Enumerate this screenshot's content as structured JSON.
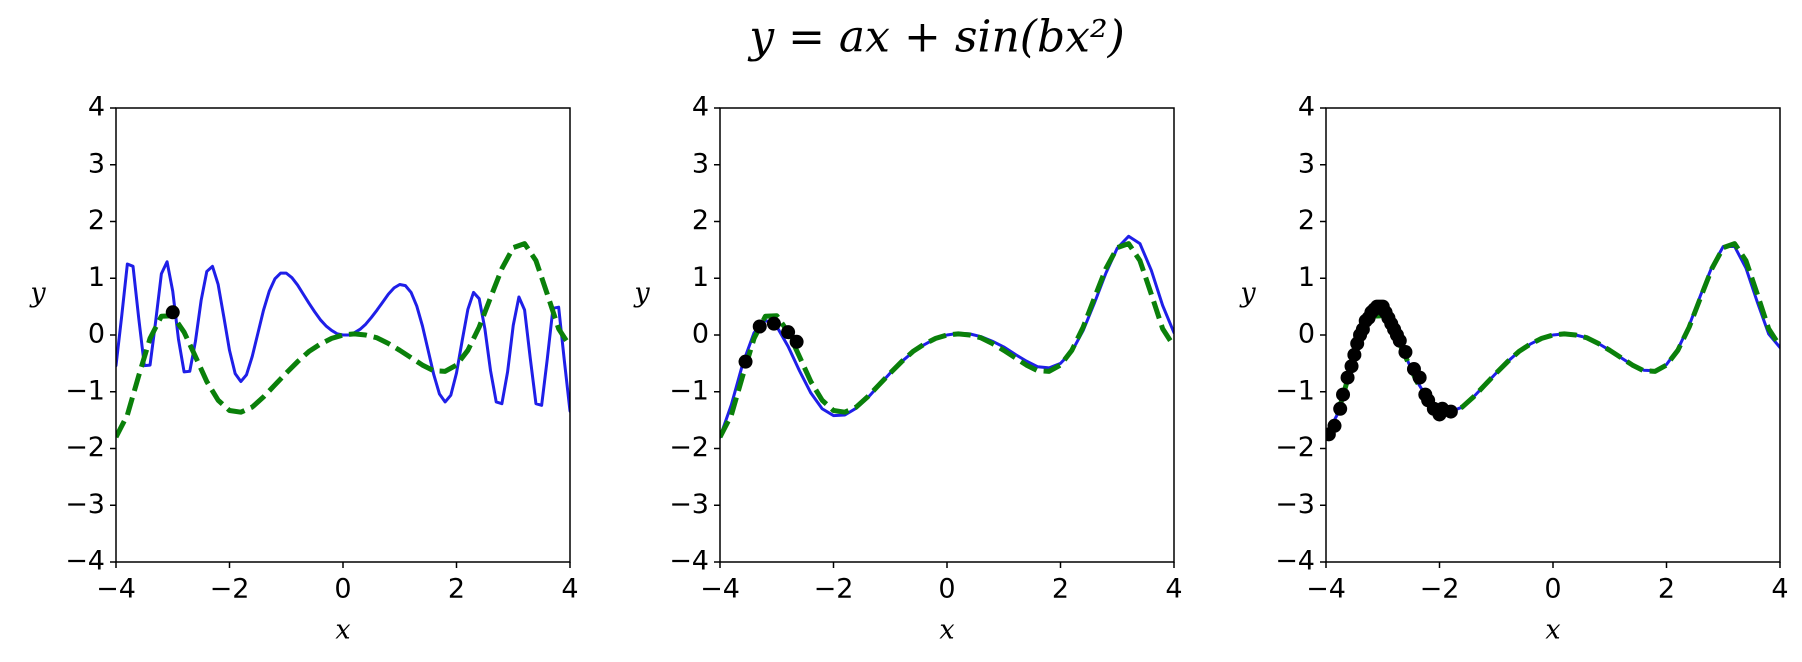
{
  "title": "y = ax + sin(bx²)",
  "chart_data": [
    {
      "type": "line",
      "xlabel": "x",
      "ylabel": "y",
      "xlim": [
        -4,
        4
      ],
      "ylim": [
        -4,
        4
      ],
      "xticks": [
        {
          "value": -4,
          "label": "−4"
        },
        {
          "value": -2,
          "label": "−2"
        },
        0,
        2,
        4
      ],
      "yticks": [
        {
          "value": -4,
          "label": "−4"
        },
        {
          "value": -3,
          "label": "−3"
        },
        {
          "value": -2,
          "label": "−2"
        },
        {
          "value": -1,
          "label": "−1"
        },
        0,
        1,
        2,
        3,
        4
      ],
      "series": [
        {
          "type": "line",
          "color": "#1f1fe8",
          "dash": false,
          "x": [
            -4,
            -3.9,
            -3.8,
            -3.7,
            -3.6,
            -3.5,
            -3.4,
            -3.3,
            -3.2,
            -3.1,
            -3,
            -2.9,
            -2.8,
            -2.7,
            -2.6,
            -2.5,
            -2.4,
            -2.3,
            -2.2,
            -2.1,
            -2,
            -1.9,
            -1.8,
            -1.7,
            -1.6,
            -1.5,
            -1.4,
            -1.3,
            -1.2,
            -1.1,
            -1,
            -0.9,
            -0.8,
            -0.7,
            -0.6,
            -0.5,
            -0.4,
            -0.3,
            -0.2,
            -0.1,
            0,
            0.1,
            0.2,
            0.3,
            0.4,
            0.5,
            0.6,
            0.7,
            0.8,
            0.9,
            1,
            1.1,
            1.2,
            1.3,
            1.4,
            1.5,
            1.6,
            1.7,
            1.8,
            1.9,
            2,
            2.1,
            2.2,
            2.3,
            2.4,
            2.5,
            2.6,
            2.7,
            2.8,
            2.9,
            3,
            3.1,
            3.2,
            3.3,
            3.4,
            3.5,
            3.6,
            3.7,
            3.8,
            3.9,
            4
          ],
          "values": [
            -0.54,
            0.33,
            1.25,
            1.21,
            0.3,
            -0.54,
            -0.53,
            0.25,
            1.08,
            1.29,
            0.77,
            -0.07,
            -0.65,
            -0.64,
            -0.11,
            0.61,
            1.12,
            1.21,
            0.89,
            0.32,
            -0.27,
            -0.68,
            -0.82,
            -0.7,
            -0.38,
            0.03,
            0.44,
            0.77,
            0.99,
            1.09,
            1.09,
            1.01,
            0.88,
            0.72,
            0.56,
            0.41,
            0.27,
            0.16,
            0.08,
            0.02,
            0,
            0,
            0.04,
            0.1,
            0.19,
            0.31,
            0.44,
            0.58,
            0.72,
            0.83,
            0.89,
            0.87,
            0.75,
            0.51,
            0.16,
            -0.27,
            -0.7,
            -1.04,
            -1.18,
            -1.06,
            -0.67,
            -0.1,
            0.45,
            0.75,
            0.64,
            0.11,
            -0.63,
            -1.18,
            -1.21,
            -0.65,
            0.17,
            0.67,
            0.44,
            -0.41,
            -1.21,
            -1.24,
            -0.42,
            0.47,
            0.49,
            -0.45,
            -1.34
          ]
        },
        {
          "type": "line",
          "color": "#0a800a",
          "dash": true,
          "x": [
            -4,
            -3.8,
            -3.6,
            -3.4,
            -3.2,
            -3,
            -2.8,
            -2.6,
            -2.4,
            -2.2,
            -2,
            -1.8,
            -1.6,
            -1.4,
            -1.2,
            -1,
            -0.8,
            -0.6,
            -0.4,
            -0.2,
            0,
            0.2,
            0.4,
            0.6,
            0.8,
            1,
            1.2,
            1.4,
            1.6,
            1.8,
            2,
            2.2,
            2.4,
            2.6,
            2.8,
            3,
            3.2,
            3.4,
            3.6,
            3.8,
            4
          ],
          "values": [
            -1.8,
            -1.41,
            -0.72,
            -0.06,
            0.33,
            0.34,
            0.05,
            -0.38,
            -0.82,
            -1.15,
            -1.33,
            -1.36,
            -1.27,
            -1.09,
            -0.88,
            -0.67,
            -0.47,
            -0.29,
            -0.16,
            -0.06,
            0,
            0.02,
            0,
            -0.05,
            -0.15,
            -0.27,
            -0.4,
            -0.53,
            -0.63,
            -0.64,
            -0.53,
            -0.27,
            0.14,
            0.66,
            1.17,
            1.54,
            1.61,
            1.31,
            0.72,
            0.11,
            -0.2
          ]
        },
        {
          "type": "scatter",
          "color": "#000000",
          "x": [
            -3
          ],
          "values": [
            0.4
          ]
        }
      ]
    },
    {
      "type": "line",
      "xlabel": "x",
      "ylabel": "y",
      "xlim": [
        -4,
        4
      ],
      "ylim": [
        -4,
        4
      ],
      "xticks": [
        {
          "value": -4,
          "label": "−4"
        },
        {
          "value": -2,
          "label": "−2"
        },
        0,
        2,
        4
      ],
      "yticks": [
        {
          "value": -4,
          "label": "−4"
        },
        {
          "value": -3,
          "label": "−3"
        },
        {
          "value": -2,
          "label": "−2"
        },
        {
          "value": -1,
          "label": "−1"
        },
        0,
        1,
        2,
        3,
        4
      ],
      "series": [
        {
          "type": "line",
          "color": "#1f1fe8",
          "dash": false,
          "x": [
            -4,
            -3.8,
            -3.6,
            -3.4,
            -3.2,
            -3,
            -2.8,
            -2.6,
            -2.4,
            -2.2,
            -2,
            -1.8,
            -1.6,
            -1.4,
            -1.2,
            -1,
            -0.8,
            -0.6,
            -0.4,
            -0.2,
            0,
            0.2,
            0.4,
            0.6,
            0.8,
            1,
            1.2,
            1.4,
            1.6,
            1.8,
            2,
            2.2,
            2.4,
            2.6,
            2.8,
            3,
            3.2,
            3.4,
            3.6,
            3.8,
            4
          ],
          "values": [
            -1.8,
            -1.23,
            -0.51,
            0.04,
            0.26,
            0.15,
            -0.2,
            -0.63,
            -1.02,
            -1.3,
            -1.42,
            -1.41,
            -1.29,
            -1.11,
            -0.89,
            -0.67,
            -0.47,
            -0.3,
            -0.17,
            -0.06,
            0,
            0.03,
            0.02,
            -0.03,
            -0.11,
            -0.21,
            -0.34,
            -0.46,
            -0.56,
            -0.58,
            -0.5,
            -0.29,
            0.08,
            0.57,
            1.09,
            1.53,
            1.74,
            1.61,
            1.14,
            0.52,
            0.04
          ]
        },
        {
          "type": "line",
          "color": "#0a800a",
          "dash": true,
          "x": [
            -4,
            -3.8,
            -3.6,
            -3.4,
            -3.2,
            -3,
            -2.8,
            -2.6,
            -2.4,
            -2.2,
            -2,
            -1.8,
            -1.6,
            -1.4,
            -1.2,
            -1,
            -0.8,
            -0.6,
            -0.4,
            -0.2,
            0,
            0.2,
            0.4,
            0.6,
            0.8,
            1,
            1.2,
            1.4,
            1.6,
            1.8,
            2,
            2.2,
            2.4,
            2.6,
            2.8,
            3,
            3.2,
            3.4,
            3.6,
            3.8,
            4
          ],
          "values": [
            -1.8,
            -1.41,
            -0.72,
            -0.06,
            0.33,
            0.34,
            0.05,
            -0.38,
            -0.82,
            -1.15,
            -1.33,
            -1.36,
            -1.27,
            -1.09,
            -0.88,
            -0.67,
            -0.47,
            -0.29,
            -0.16,
            -0.06,
            0,
            0.02,
            0,
            -0.05,
            -0.15,
            -0.27,
            -0.4,
            -0.53,
            -0.63,
            -0.64,
            -0.53,
            -0.27,
            0.14,
            0.66,
            1.17,
            1.54,
            1.61,
            1.31,
            0.72,
            0.11,
            -0.2
          ]
        },
        {
          "type": "scatter",
          "color": "#000000",
          "x": [
            -3.55,
            -3.3,
            -3.05,
            -2.8,
            -2.65
          ],
          "values": [
            -0.47,
            0.15,
            0.2,
            0.05,
            -0.12
          ]
        }
      ]
    },
    {
      "type": "line",
      "xlabel": "x",
      "ylabel": "y",
      "xlim": [
        -4,
        4
      ],
      "ylim": [
        -4,
        4
      ],
      "xticks": [
        {
          "value": -4,
          "label": "−4"
        },
        {
          "value": -2,
          "label": "−2"
        },
        0,
        2,
        4
      ],
      "yticks": [
        {
          "value": -4,
          "label": "−4"
        },
        {
          "value": -3,
          "label": "−3"
        },
        {
          "value": -2,
          "label": "−2"
        },
        {
          "value": -1,
          "label": "−1"
        },
        0,
        1,
        2,
        3,
        4
      ],
      "series": [
        {
          "type": "line",
          "color": "#1f1fe8",
          "dash": false,
          "x": [
            -4,
            -3.8,
            -3.6,
            -3.4,
            -3.2,
            -3,
            -2.8,
            -2.6,
            -2.4,
            -2.2,
            -2,
            -1.8,
            -1.6,
            -1.4,
            -1.2,
            -1,
            -0.8,
            -0.6,
            -0.4,
            -0.2,
            0,
            0.2,
            0.4,
            0.6,
            0.8,
            1,
            1.2,
            1.4,
            1.6,
            1.8,
            2,
            2.2,
            2.4,
            2.6,
            2.8,
            3,
            3.2,
            3.4,
            3.6,
            3.8,
            4
          ],
          "values": [
            -1.78,
            -1.4,
            -0.7,
            -0.04,
            0.35,
            0.35,
            0.06,
            -0.37,
            -0.81,
            -1.14,
            -1.32,
            -1.35,
            -1.27,
            -1.09,
            -0.88,
            -0.67,
            -0.47,
            -0.29,
            -0.16,
            -0.06,
            0,
            0.02,
            0,
            -0.05,
            -0.15,
            -0.27,
            -0.4,
            -0.53,
            -0.62,
            -0.63,
            -0.52,
            -0.25,
            0.17,
            0.7,
            1.2,
            1.56,
            1.56,
            1.18,
            0.58,
            0.02,
            -0.22
          ]
        },
        {
          "type": "line",
          "color": "#0a800a",
          "dash": true,
          "x": [
            -4,
            -3.8,
            -3.6,
            -3.4,
            -3.2,
            -3,
            -2.8,
            -2.6,
            -2.4,
            -2.2,
            -2,
            -1.8,
            -1.6,
            -1.4,
            -1.2,
            -1,
            -0.8,
            -0.6,
            -0.4,
            -0.2,
            0,
            0.2,
            0.4,
            0.6,
            0.8,
            1,
            1.2,
            1.4,
            1.6,
            1.8,
            2,
            2.2,
            2.4,
            2.6,
            2.8,
            3,
            3.2,
            3.4,
            3.6,
            3.8,
            4
          ],
          "values": [
            -1.8,
            -1.41,
            -0.72,
            -0.06,
            0.33,
            0.34,
            0.05,
            -0.38,
            -0.82,
            -1.15,
            -1.33,
            -1.36,
            -1.27,
            -1.09,
            -0.88,
            -0.67,
            -0.47,
            -0.29,
            -0.16,
            -0.06,
            0,
            0.02,
            0,
            -0.05,
            -0.15,
            -0.27,
            -0.4,
            -0.53,
            -0.63,
            -0.64,
            -0.53,
            -0.27,
            0.14,
            0.66,
            1.17,
            1.54,
            1.61,
            1.31,
            0.72,
            0.11,
            -0.2
          ]
        },
        {
          "type": "scatter",
          "color": "#000000",
          "x": [
            -3.95,
            -3.85,
            -3.75,
            -3.7,
            -3.62,
            -3.55,
            -3.5,
            -3.45,
            -3.4,
            -3.35,
            -3.3,
            -3.25,
            -3.2,
            -3.15,
            -3.1,
            -3.05,
            -3,
            -2.95,
            -2.9,
            -2.85,
            -2.8,
            -2.75,
            -2.7,
            -2.6,
            -2.45,
            -2.35,
            -2.25,
            -2.2,
            -2.1,
            -2,
            -1.95,
            -1.8
          ],
          "values": [
            -1.75,
            -1.6,
            -1.3,
            -1.05,
            -0.75,
            -0.55,
            -0.35,
            -0.15,
            0,
            0.1,
            0.25,
            0.3,
            0.4,
            0.45,
            0.5,
            0.5,
            0.5,
            0.4,
            0.3,
            0.2,
            0.1,
            0,
            -0.1,
            -0.3,
            -0.6,
            -0.75,
            -1.05,
            -1.15,
            -1.3,
            -1.4,
            -1.3,
            -1.35
          ]
        }
      ]
    }
  ]
}
